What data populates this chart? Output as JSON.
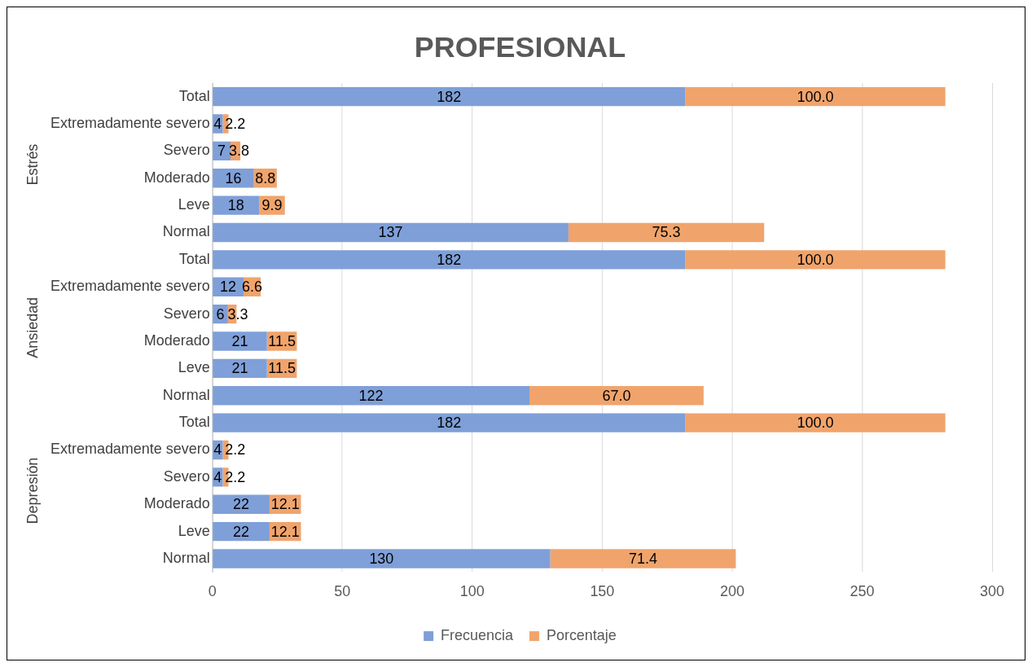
{
  "chart_data": {
    "type": "bar",
    "orientation": "horizontal",
    "stacked": true,
    "title": "PROFESIONAL",
    "categories": [
      "Total",
      "Extremadamente severo",
      "Severo",
      "Moderado",
      "Leve",
      "Normal",
      "Total",
      "Extremadamente severo",
      "Severo",
      "Moderado",
      "Leve",
      "Normal",
      "Total",
      "Extremadamente severo",
      "Severo",
      "Moderado",
      "Leve",
      "Normal"
    ],
    "annotations": [
      "Estrés",
      "Ansiedad",
      "Depresión"
    ],
    "series": [
      {
        "name": "Frecuencia",
        "color": "#7f9fd8",
        "values": [
          182,
          4,
          7,
          16,
          18,
          137,
          182,
          12,
          6,
          21,
          21,
          122,
          182,
          4,
          4,
          22,
          22,
          130
        ],
        "value_labels": [
          "182",
          "4",
          "7",
          "16",
          "18",
          "137",
          "182",
          "12",
          "6",
          "21",
          "21",
          "122",
          "182",
          "4",
          "4",
          "22",
          "22",
          "130"
        ]
      },
      {
        "name": "Porcentaje",
        "color": "#f0a46c",
        "values": [
          100.0,
          2.2,
          3.8,
          8.8,
          9.9,
          75.3,
          100.0,
          6.6,
          3.3,
          11.5,
          11.5,
          67.0,
          100.0,
          2.2,
          2.2,
          12.1,
          12.1,
          71.4
        ],
        "value_labels": [
          "100.0",
          "2.2",
          "3.8",
          "8.8",
          "9.9",
          "75.3",
          "100.0",
          "6.6",
          "3.3",
          "11.5",
          "11.5",
          "67.0",
          "100.0",
          "2.2",
          "2.2",
          "12.1",
          "12.1",
          "71.4"
        ]
      }
    ],
    "xlim": [
      0,
      300
    ],
    "xticks": [
      0,
      50,
      100,
      150,
      200,
      250,
      300
    ],
    "grid": "x",
    "legend": "bottom"
  }
}
